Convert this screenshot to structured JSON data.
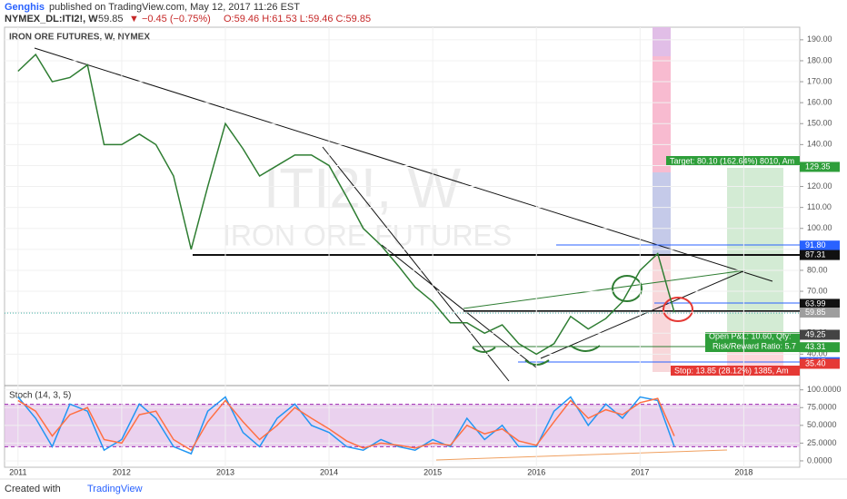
{
  "header": {
    "author": "Genghis",
    "published": "published on TradingView.com, May 12, 2017 11:26 EST",
    "symbol": "NYMEX_DL:ITI2!, W",
    "last": "59.85",
    "change": "▼ −0.45 (−0.75%)",
    "ohlc": "O:59.46 H:61.53 L:59.46 C:59.85"
  },
  "footer": {
    "created": "Created with",
    "brand": "TradingView"
  },
  "chart_data": [
    {
      "type": "line",
      "title": "IRON ORE FUTURES, W, NYMEX",
      "watermark": [
        "ITI2!, W",
        "IRON ORE FUTURES"
      ],
      "x": [
        2011.0,
        2011.17,
        2011.33,
        2011.5,
        2011.67,
        2011.83,
        2012.0,
        2012.17,
        2012.33,
        2012.5,
        2012.67,
        2012.83,
        2013.0,
        2013.17,
        2013.33,
        2013.5,
        2013.67,
        2013.83,
        2014.0,
        2014.17,
        2014.33,
        2014.5,
        2014.67,
        2014.83,
        2015.0,
        2015.17,
        2015.33,
        2015.5,
        2015.67,
        2015.83,
        2016.0,
        2016.17,
        2016.33,
        2016.5,
        2016.67,
        2016.83,
        2017.0,
        2017.17,
        2017.33
      ],
      "series": [
        {
          "color": "#2e7d32",
          "values": [
            175,
            183,
            170,
            172,
            178,
            140,
            140,
            145,
            140,
            125,
            90,
            120,
            150,
            138,
            125,
            130,
            135,
            135,
            130,
            115,
            100,
            92,
            82,
            72,
            65,
            55,
            55,
            50,
            54,
            45,
            40,
            45,
            58,
            52,
            57,
            65,
            80,
            88,
            60
          ]
        }
      ],
      "xlim": [
        2010.87,
        2018.54
      ],
      "xticks": [
        2011,
        2012,
        2013,
        2014,
        2015,
        2016,
        2017,
        2018
      ],
      "ylim": [
        25,
        196
      ],
      "yticks": [
        {
          "value": 40,
          "label": "40.00"
        },
        {
          "value": 50,
          "label": "50.00"
        },
        {
          "value": 60,
          "label": "60.00"
        },
        {
          "value": 70,
          "label": "70.00"
        },
        {
          "value": 80,
          "label": "80.00"
        },
        {
          "value": 90,
          "label": "90.00"
        },
        {
          "value": 100,
          "label": "100.00"
        },
        {
          "value": 110,
          "label": "110.00"
        },
        {
          "value": 120,
          "label": "120.00"
        },
        {
          "value": 130,
          "label": "130.00"
        },
        {
          "value": 140,
          "label": "140.00"
        },
        {
          "value": 150,
          "label": "150.00"
        },
        {
          "value": 160,
          "label": "160.00"
        },
        {
          "value": 170,
          "label": "170.00"
        },
        {
          "value": 180,
          "label": "180.00"
        },
        {
          "value": 190,
          "label": "190.00"
        }
      ],
      "price_labels": [
        {
          "value": 129.35,
          "label": "129.35",
          "color": "#2e9e3a"
        },
        {
          "value": 91.8,
          "label": "91.80",
          "color": "#2962ff"
        },
        {
          "value": 87.31,
          "label": "87.31",
          "color": "#111111"
        },
        {
          "value": 63.99,
          "label": "63.99",
          "color": "#111111"
        },
        {
          "value": 60.29,
          "label": "60.29",
          "color": "#111111"
        },
        {
          "value": 59.85,
          "label": "59.85",
          "color": "#9e9e9e"
        },
        {
          "value": 49.25,
          "label": "49.25",
          "color": "#444444"
        },
        {
          "value": 43.31,
          "label": "43.31",
          "color": "#2e9e3a"
        },
        {
          "value": 36.17,
          "label": "36.17",
          "color": "#2962ff"
        },
        {
          "value": 35.4,
          "label": "35.40",
          "color": "#e53935"
        }
      ],
      "annotations": [
        "Target: 80.10 (162.64%) 8010, Am",
        "Open P&L: 10.60, Qty:",
        "Risk/Reward Ratio: 5.7",
        "Stop: 13.85 (28.12%) 1385, Am"
      ],
      "grid": true
    },
    {
      "type": "line",
      "title": "Stoch (14, 3, 5)",
      "x": [
        2011.0,
        2011.17,
        2011.33,
        2011.5,
        2011.67,
        2011.83,
        2012.0,
        2012.17,
        2012.33,
        2012.5,
        2012.67,
        2012.83,
        2013.0,
        2013.17,
        2013.33,
        2013.5,
        2013.67,
        2013.83,
        2014.0,
        2014.17,
        2014.33,
        2014.5,
        2014.67,
        2014.83,
        2015.0,
        2015.17,
        2015.33,
        2015.5,
        2015.67,
        2015.83,
        2016.0,
        2016.17,
        2016.33,
        2016.5,
        2016.67,
        2016.83,
        2017.0,
        2017.17,
        2017.33
      ],
      "series": [
        {
          "color": "#2196f3",
          "values": [
            90,
            60,
            20,
            80,
            70,
            15,
            30,
            80,
            60,
            20,
            10,
            70,
            90,
            40,
            20,
            60,
            80,
            50,
            40,
            20,
            15,
            30,
            20,
            15,
            30,
            20,
            60,
            30,
            50,
            20,
            20,
            70,
            90,
            50,
            80,
            60,
            90,
            85,
            20
          ]
        },
        {
          "color": "#ff7043",
          "values": [
            85,
            70,
            35,
            65,
            75,
            30,
            25,
            65,
            70,
            30,
            15,
            55,
            85,
            55,
            30,
            50,
            75,
            60,
            45,
            28,
            18,
            25,
            22,
            18,
            25,
            22,
            50,
            38,
            45,
            28,
            22,
            55,
            85,
            60,
            72,
            65,
            82,
            88,
            35
          ]
        }
      ],
      "xlim": [
        2010.87,
        2018.54
      ],
      "ylim": [
        -9,
        106
      ],
      "yticks": [
        {
          "value": 0,
          "label": "0.0000"
        },
        {
          "value": 25,
          "label": "25.0000"
        },
        {
          "value": 50,
          "label": "50.0000"
        },
        {
          "value": 75,
          "label": "75.0000"
        },
        {
          "value": 100,
          "label": "100.0000"
        }
      ]
    }
  ]
}
